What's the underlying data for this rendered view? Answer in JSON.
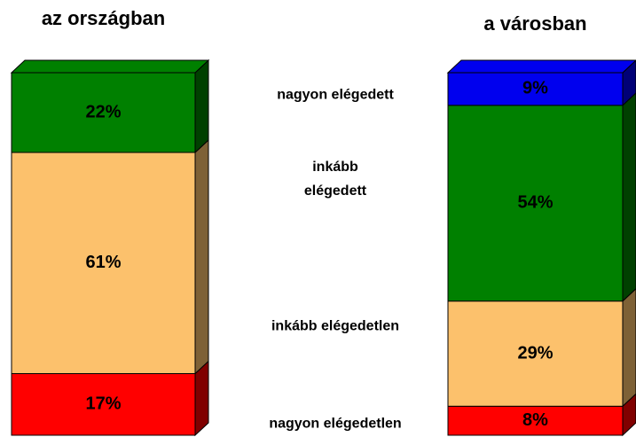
{
  "chart_data": {
    "type": "stacked-bar-3d",
    "categories": [
      "az országban",
      "a városban"
    ],
    "series": [
      {
        "name": "nagyon elégedetlen",
        "color": "#ff0000",
        "values": [
          17,
          8
        ],
        "value_labels": [
          "17%",
          "8%"
        ]
      },
      {
        "name": "inkább elégedetlen",
        "color": "#fcc16c",
        "values": [
          61,
          29
        ],
        "value_labels": [
          "61%",
          "29%"
        ]
      },
      {
        "name": "inkább elégedett",
        "color": "#008000",
        "values": [
          22,
          54
        ],
        "value_labels": [
          "22%",
          "54%"
        ]
      },
      {
        "name": "nagyon elégedett",
        "color": "#0000ee",
        "values": [
          null,
          9
        ],
        "value_labels": [
          null,
          "9%"
        ]
      }
    ]
  }
}
